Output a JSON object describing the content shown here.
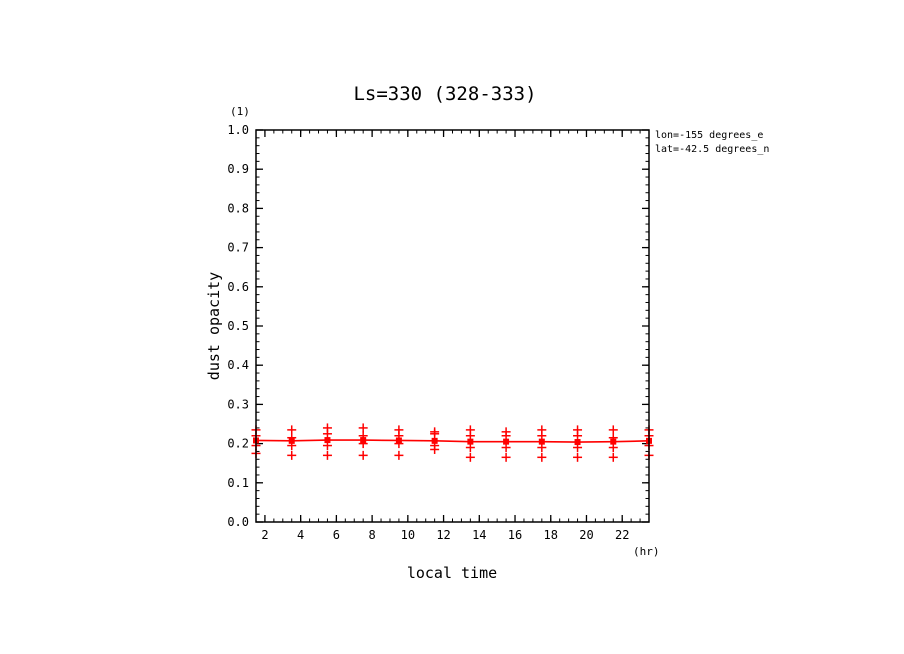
{
  "chart_data": {
    "type": "scatter",
    "title": "Ls=330 (328-333)",
    "xlabel": "local time",
    "ylabel": "dust opacity",
    "x_unit": "(hr)",
    "y_unit": "(1)",
    "xlim": [
      1.5,
      23.5
    ],
    "ylim": [
      0.0,
      1.0
    ],
    "xticks": [
      "2",
      "4",
      "6",
      "8",
      "10",
      "12",
      "14",
      "16",
      "18",
      "20",
      "22"
    ],
    "xtick_values": [
      2,
      4,
      6,
      8,
      10,
      12,
      14,
      16,
      18,
      20,
      22
    ],
    "yticks": [
      "0.0",
      "0.1",
      "0.2",
      "0.3",
      "0.4",
      "0.5",
      "0.6",
      "0.7",
      "0.8",
      "0.9",
      "1.0"
    ],
    "ytick_values": [
      0,
      0.1,
      0.2,
      0.3,
      0.4,
      0.5,
      0.6,
      0.7,
      0.8,
      0.9,
      1.0
    ],
    "annotations": [
      "lon=-155 degrees_e",
      "lat=-42.5 degrees_n"
    ],
    "color": "#ff0000",
    "mean_line": {
      "x": [
        1.5,
        3.5,
        5.5,
        7.5,
        9.5,
        11.5,
        13.5,
        15.5,
        17.5,
        19.5,
        21.5,
        23.5
      ],
      "y": [
        0.208,
        0.207,
        0.209,
        0.209,
        0.208,
        0.207,
        0.205,
        0.205,
        0.205,
        0.204,
        0.205,
        0.207
      ]
    },
    "points": {
      "x": [
        1.5,
        3.5,
        5.5,
        7.5,
        9.5,
        11.5,
        13.5,
        15.5,
        17.5,
        19.5,
        21.5,
        23.5
      ],
      "upper": [
        0.235,
        0.235,
        0.24,
        0.24,
        0.235,
        0.23,
        0.235,
        0.23,
        0.235,
        0.235,
        0.235,
        0.235
      ],
      "upper_mid": [
        0.22,
        0.215,
        0.225,
        0.22,
        0.22,
        0.225,
        0.22,
        0.22,
        0.22,
        0.22,
        0.215,
        0.22
      ],
      "lower_mid": [
        0.195,
        0.195,
        0.195,
        0.2,
        0.2,
        0.195,
        0.19,
        0.19,
        0.19,
        0.19,
        0.19,
        0.195
      ],
      "lower": [
        0.175,
        0.17,
        0.17,
        0.17,
        0.17,
        0.185,
        0.165,
        0.165,
        0.165,
        0.165,
        0.165,
        0.17
      ]
    }
  }
}
